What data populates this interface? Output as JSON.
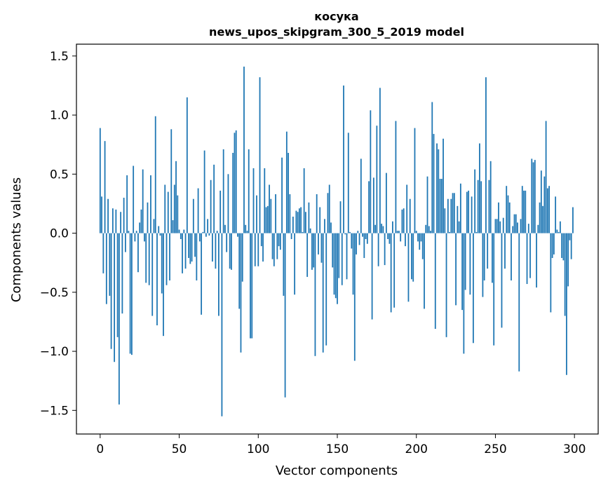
{
  "chart_data": {
    "type": "bar",
    "title": "косука",
    "subtitle": "news_upos_skipgram_300_5_2019 model",
    "xlabel": "Vector components",
    "ylabel": "Components values",
    "xlim": [
      -15,
      315
    ],
    "ylim": [
      -1.7,
      1.6
    ],
    "xticks": [
      0,
      50,
      100,
      150,
      200,
      250,
      300
    ],
    "xtick_labels": [
      "0",
      "50",
      "100",
      "150",
      "200",
      "250",
      "300"
    ],
    "yticks": [
      -1.5,
      -1.0,
      -0.5,
      0.0,
      0.5,
      1.0,
      1.5
    ],
    "ytick_labels": [
      "−1.5",
      "−1.0",
      "−0.5",
      "0.0",
      "0.5",
      "1.0",
      "1.5"
    ],
    "bar_color": "#1f77b4",
    "values": [
      0.89,
      0.31,
      -0.34,
      0.78,
      -0.6,
      0.29,
      -0.53,
      -0.98,
      0.21,
      -1.09,
      0.2,
      -0.88,
      -1.45,
      0.18,
      -0.68,
      0.3,
      -0.16,
      0.49,
      0.02,
      -1.02,
      -1.03,
      0.57,
      -0.07,
      0.02,
      -0.33,
      0.09,
      0.2,
      0.54,
      -0.07,
      -0.42,
      0.26,
      -0.44,
      0.49,
      -0.7,
      0.12,
      0.99,
      -0.78,
      0.06,
      -0.02,
      -0.51,
      -0.87,
      0.41,
      -0.44,
      0.35,
      -0.4,
      0.88,
      0.11,
      0.41,
      0.61,
      0.32,
      0.03,
      -0.05,
      -0.34,
      0.03,
      -0.3,
      1.15,
      -0.21,
      -0.26,
      -0.24,
      0.29,
      -0.2,
      -0.4,
      0.38,
      -0.07,
      -0.69,
      0.01,
      0.7,
      -0.03,
      0.12,
      -0.02,
      0.45,
      -0.24,
      0.58,
      -0.3,
      0.02,
      -0.7,
      0.36,
      -1.55,
      0.71,
      0.07,
      -0.16,
      0.5,
      -0.3,
      -0.31,
      0.68,
      0.85,
      0.87,
      -0.03,
      -0.64,
      -1.01,
      -0.41,
      1.41,
      0.07,
      0.02,
      0.71,
      -0.89,
      -0.89,
      0.55,
      -0.28,
      0.32,
      -0.28,
      1.32,
      -0.11,
      -0.24,
      0.55,
      0.22,
      0.23,
      0.41,
      0.29,
      -0.22,
      -0.28,
      0.33,
      -0.22,
      -0.11,
      -0.14,
      0.64,
      -0.53,
      -1.39,
      0.86,
      0.68,
      0.33,
      -0.05,
      0.14,
      -0.52,
      0.19,
      0.18,
      0.21,
      0.22,
      0.01,
      0.55,
      0.18,
      -0.37,
      0.26,
      0.04,
      -0.31,
      -0.29,
      -1.04,
      0.33,
      -0.18,
      0.22,
      -0.25,
      -1.01,
      0.12,
      -0.95,
      0.34,
      0.41,
      0.09,
      -0.29,
      -0.52,
      -0.55,
      -0.6,
      -0.38,
      0.27,
      -0.44,
      1.25,
      -0.01,
      -0.39,
      0.85,
      0.01,
      -0.13,
      -0.52,
      -1.08,
      -0.18,
      0.02,
      -0.1,
      0.63,
      -0.03,
      -0.21,
      -0.05,
      -0.09,
      0.44,
      1.04,
      -0.73,
      0.47,
      0.07,
      0.91,
      -0.28,
      1.23,
      0.08,
      0.06,
      -0.27,
      0.51,
      -0.05,
      -0.09,
      -0.67,
      0.1,
      -0.63,
      0.95,
      0.02,
      0.02,
      -0.07,
      0.2,
      0.21,
      -0.11,
      0.41,
      -0.58,
      0.29,
      -0.39,
      -0.41,
      0.89,
      0.02,
      -0.07,
      -0.14,
      -0.07,
      -0.22,
      -0.64,
      0.07,
      0.48,
      0.06,
      0.02,
      1.11,
      0.84,
      -0.81,
      0.76,
      0.71,
      0.46,
      0.46,
      0.8,
      0.21,
      -0.88,
      0.29,
      0.01,
      0.29,
      0.34,
      0.34,
      -0.61,
      0.23,
      0.1,
      0.42,
      -0.65,
      -1.02,
      -0.48,
      0.35,
      0.36,
      -0.52,
      0.31,
      -0.93,
      0.54,
      0.01,
      0.45,
      0.76,
      0.44,
      -0.54,
      -0.4,
      1.32,
      -0.3,
      0.45,
      0.61,
      -0.42,
      -0.95,
      0.12,
      0.12,
      0.26,
      0.1,
      -0.8,
      0.13,
      -0.3,
      0.4,
      0.32,
      0.26,
      -0.4,
      0.06,
      0.16,
      0.16,
      0.09,
      -1.17,
      0.12,
      0.4,
      0.36,
      0.36,
      -0.43,
      0.08,
      -0.38,
      0.63,
      0.6,
      0.62,
      -0.46,
      0.07,
      0.26,
      0.53,
      0.23,
      0.48,
      0.95,
      0.38,
      0.4,
      -0.67,
      -0.21,
      -0.18,
      0.31,
      0.03,
      0.01,
      0.1,
      -0.21,
      -0.23,
      -0.7,
      -1.2,
      -0.45,
      -0.06,
      -0.22,
      0.22
    ]
  }
}
